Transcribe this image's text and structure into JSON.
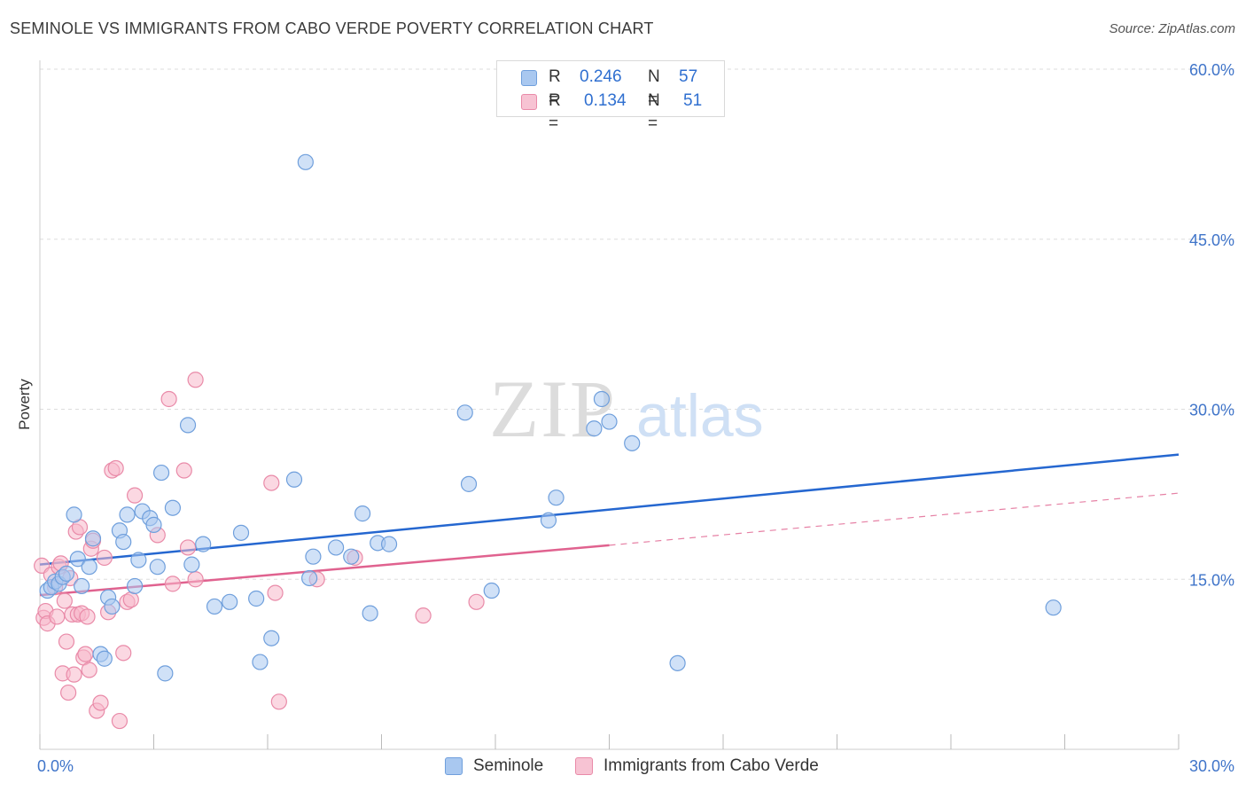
{
  "header": {
    "title": "SEMINOLE VS IMMIGRANTS FROM CABO VERDE POVERTY CORRELATION CHART",
    "source": "Source: ZipAtlas.com"
  },
  "watermark": {
    "zip": "ZIP",
    "atlas": "atlas"
  },
  "colors": {
    "blue_fill": "#a9c8f0",
    "blue_stroke": "#6f9fdc",
    "blue_line": "#2567d0",
    "pink_fill": "#f7b8cb",
    "pink_stroke": "#e98aa8",
    "pink_line": "#e0628f",
    "tick_text": "#3f74c9",
    "grid": "#dddddd"
  },
  "stats_legend": {
    "r_label": "R =",
    "n_label": "N =",
    "rows": [
      {
        "series": "Seminole",
        "r": "0.246",
        "n": "57"
      },
      {
        "series": "Immigrants from Cabo Verde",
        "r": "0.134",
        "n": "51"
      }
    ]
  },
  "bottom_legend": [
    "Seminole",
    "Immigrants from Cabo Verde"
  ],
  "chart_data": {
    "type": "scatter",
    "title": "SEMINOLE VS IMMIGRANTS FROM CABO VERDE POVERTY CORRELATION CHART",
    "xlabel": "",
    "ylabel": "Poverty",
    "xlim": [
      0,
      30
    ],
    "ylim": [
      0,
      60
    ],
    "x_tick_labels": [
      "0.0%",
      "30.0%"
    ],
    "y_tick_values": [
      15,
      30,
      45,
      60
    ],
    "y_tick_labels": [
      "15.0%",
      "30.0%",
      "45.0%",
      "60.0%"
    ],
    "grid": true,
    "series": [
      {
        "name": "Seminole",
        "r": 0.246,
        "n": 57,
        "trend": {
          "x0": 0,
          "y0": 16.3,
          "x1": 30,
          "y1": 26.0
        },
        "points": [
          [
            0.2,
            14.0
          ],
          [
            0.3,
            14.3
          ],
          [
            0.4,
            14.8
          ],
          [
            0.5,
            14.6
          ],
          [
            0.6,
            15.2
          ],
          [
            0.7,
            15.5
          ],
          [
            0.9,
            20.7
          ],
          [
            1.0,
            16.8
          ],
          [
            1.1,
            14.4
          ],
          [
            1.3,
            16.1
          ],
          [
            1.4,
            18.6
          ],
          [
            1.6,
            8.4
          ],
          [
            1.7,
            8.0
          ],
          [
            1.8,
            13.4
          ],
          [
            1.9,
            12.6
          ],
          [
            2.1,
            19.3
          ],
          [
            2.2,
            18.3
          ],
          [
            2.3,
            20.7
          ],
          [
            2.5,
            14.4
          ],
          [
            2.6,
            16.7
          ],
          [
            2.7,
            21.0
          ],
          [
            2.9,
            20.4
          ],
          [
            3.0,
            19.8
          ],
          [
            3.1,
            16.1
          ],
          [
            3.2,
            24.4
          ],
          [
            3.3,
            6.7
          ],
          [
            3.5,
            21.3
          ],
          [
            3.9,
            28.6
          ],
          [
            4.0,
            16.3
          ],
          [
            4.3,
            18.1
          ],
          [
            4.6,
            12.6
          ],
          [
            5.0,
            13.0
          ],
          [
            5.3,
            19.1
          ],
          [
            5.7,
            13.3
          ],
          [
            5.8,
            7.7
          ],
          [
            6.1,
            9.8
          ],
          [
            6.7,
            23.8
          ],
          [
            7.0,
            51.8
          ],
          [
            7.1,
            15.1
          ],
          [
            7.2,
            17.0
          ],
          [
            7.8,
            17.8
          ],
          [
            8.2,
            17.0
          ],
          [
            8.5,
            20.8
          ],
          [
            8.7,
            12.0
          ],
          [
            8.9,
            18.2
          ],
          [
            9.2,
            18.1
          ],
          [
            11.2,
            29.7
          ],
          [
            11.3,
            23.4
          ],
          [
            11.9,
            14.0
          ],
          [
            13.4,
            20.2
          ],
          [
            13.6,
            22.2
          ],
          [
            14.6,
            28.3
          ],
          [
            14.8,
            30.9
          ],
          [
            15.0,
            28.9
          ],
          [
            15.6,
            27.0
          ],
          [
            16.8,
            7.6
          ],
          [
            26.7,
            12.5
          ]
        ]
      },
      {
        "name": "Immigrants from Cabo Verde",
        "r": 0.134,
        "n": 51,
        "trend": {
          "x0": 0,
          "y0": 13.6,
          "x1": 15,
          "y1": 18.0,
          "dash_x1": 30,
          "dash_y1": 22.6
        },
        "points": [
          [
            0.05,
            16.2
          ],
          [
            0.1,
            11.6
          ],
          [
            0.15,
            12.2
          ],
          [
            0.2,
            11.1
          ],
          [
            0.3,
            15.4
          ],
          [
            0.4,
            14.3
          ],
          [
            0.45,
            11.7
          ],
          [
            0.5,
            16.1
          ],
          [
            0.55,
            16.4
          ],
          [
            0.6,
            6.7
          ],
          [
            0.65,
            13.1
          ],
          [
            0.7,
            9.5
          ],
          [
            0.75,
            5.0
          ],
          [
            0.8,
            15.1
          ],
          [
            0.85,
            11.9
          ],
          [
            0.9,
            6.6
          ],
          [
            0.95,
            19.2
          ],
          [
            1.0,
            11.9
          ],
          [
            1.05,
            19.6
          ],
          [
            1.1,
            12.0
          ],
          [
            1.15,
            8.1
          ],
          [
            1.2,
            8.4
          ],
          [
            1.25,
            11.7
          ],
          [
            1.3,
            7.0
          ],
          [
            1.35,
            17.7
          ],
          [
            1.4,
            18.4
          ],
          [
            1.5,
            3.4
          ],
          [
            1.6,
            4.1
          ],
          [
            1.7,
            16.9
          ],
          [
            1.8,
            12.1
          ],
          [
            1.9,
            24.6
          ],
          [
            2.0,
            24.8
          ],
          [
            2.1,
            2.5
          ],
          [
            2.2,
            8.5
          ],
          [
            2.3,
            13.0
          ],
          [
            2.4,
            13.2
          ],
          [
            2.5,
            22.4
          ],
          [
            3.1,
            18.9
          ],
          [
            3.4,
            30.9
          ],
          [
            3.5,
            14.6
          ],
          [
            3.8,
            24.6
          ],
          [
            3.9,
            17.8
          ],
          [
            4.1,
            32.6
          ],
          [
            4.1,
            15.0
          ],
          [
            6.1,
            23.5
          ],
          [
            6.2,
            13.8
          ],
          [
            6.3,
            4.2
          ],
          [
            7.3,
            15.0
          ],
          [
            8.3,
            16.9
          ],
          [
            10.1,
            11.8
          ],
          [
            11.5,
            13.0
          ]
        ]
      }
    ]
  }
}
